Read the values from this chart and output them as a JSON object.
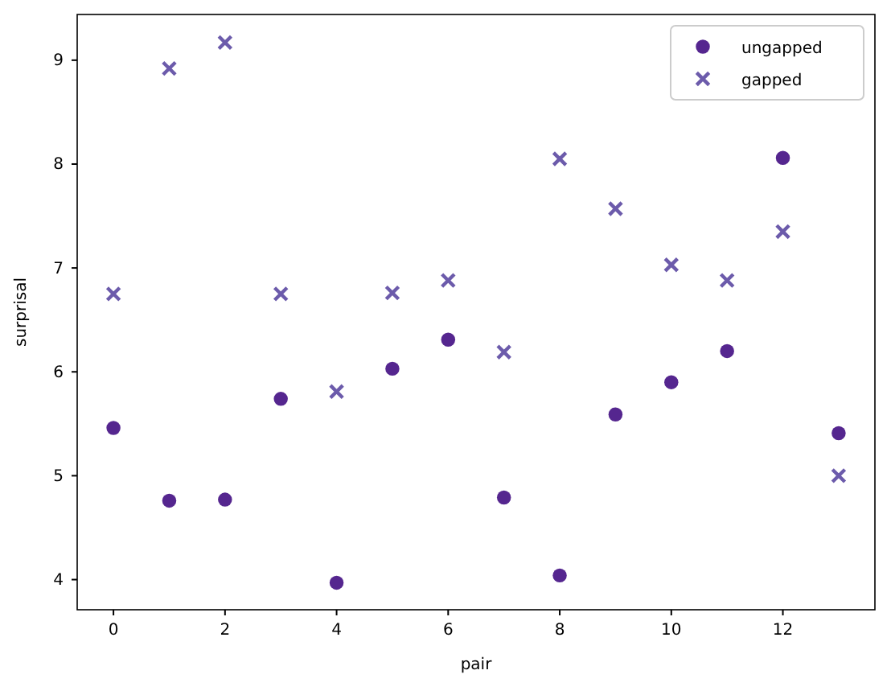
{
  "chart_data": {
    "type": "scatter",
    "xlabel": "pair",
    "ylabel": "surprisal",
    "x": [
      0,
      1,
      2,
      3,
      4,
      5,
      6,
      7,
      8,
      9,
      10,
      11,
      12,
      13
    ],
    "series": [
      {
        "name": "ungapped",
        "color": "#55268f",
        "marker": "circle",
        "values": [
          5.46,
          4.76,
          4.77,
          5.74,
          3.97,
          6.03,
          6.31,
          4.79,
          4.04,
          5.59,
          5.9,
          6.2,
          8.06,
          5.41
        ]
      },
      {
        "name": "gapped",
        "color": "#6c5bab",
        "marker": "cross",
        "values": [
          6.75,
          8.92,
          9.17,
          6.75,
          5.81,
          6.76,
          6.88,
          6.19,
          8.05,
          7.57,
          7.03,
          6.88,
          7.35,
          5.0
        ]
      }
    ],
    "xlim": [
      -0.65,
      13.65
    ],
    "ylim": [
      3.71,
      9.44
    ],
    "xticks": [
      0,
      2,
      4,
      6,
      8,
      10,
      12
    ],
    "yticks": [
      4,
      5,
      6,
      7,
      8,
      9
    ],
    "grid": false,
    "legend": "top right"
  }
}
